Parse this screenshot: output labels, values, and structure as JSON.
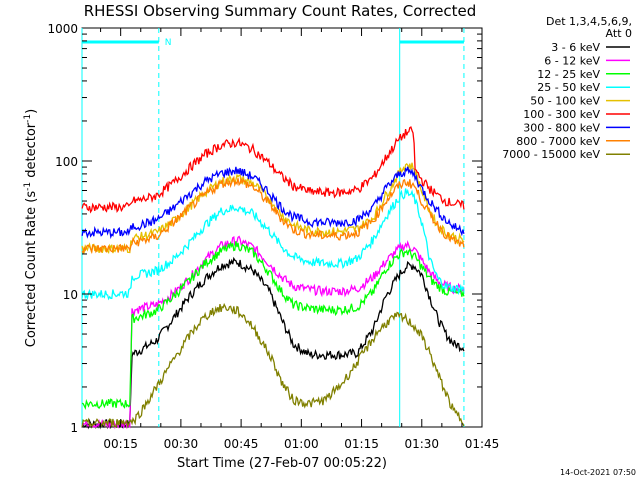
{
  "colors": {
    "background": "#ffffff",
    "axes": "#000000",
    "interval_marker": "#00ffff"
  },
  "chart_data": {
    "type": "line",
    "title": "RHESSI Observing Summary Count Rates, Corrected",
    "xlabel": "Start Time (27-Feb-07 00:05:22)",
    "ylabel_parts": [
      "Corrected Count Rate (s",
      "-1",
      " detector",
      "-1",
      ")"
    ],
    "x_unit": "minutes after 00:00 on 27-Feb-07",
    "xlim": [
      5.37,
      105
    ],
    "ylim": [
      1,
      1000
    ],
    "yscale": "log",
    "grid": false,
    "legend_placement": "right",
    "legend_header": [
      "Det 1,3,4,5,6,9,",
      "Att 0"
    ],
    "x_ticks": [
      {
        "value": 15,
        "label": "00:15"
      },
      {
        "value": 30,
        "label": "00:30"
      },
      {
        "value": 45,
        "label": "00:45"
      },
      {
        "value": 60,
        "label": "01:00"
      },
      {
        "value": 75,
        "label": "01:15"
      },
      {
        "value": 90,
        "label": "01:30"
      },
      {
        "value": 105,
        "label": "01:45"
      }
    ],
    "y_ticks": [
      {
        "value": 1,
        "label": "1"
      },
      {
        "value": 10,
        "label": "10"
      },
      {
        "value": 100,
        "label": "100"
      },
      {
        "value": 1000,
        "label": "1000"
      }
    ],
    "intervals": [
      {
        "start": 5.37,
        "end": 24.5,
        "label": "N"
      },
      {
        "start": 84.5,
        "end": 100.5,
        "label": ""
      }
    ],
    "series": [
      {
        "name": "3 - 6 keV",
        "color": "#000000",
        "x": [
          5.4,
          17.5,
          17.6,
          20,
          24,
          28,
          32,
          36,
          40,
          44,
          48,
          52,
          55,
          58,
          62,
          66,
          70,
          74,
          78,
          81,
          84,
          86,
          88,
          90,
          92,
          94,
          96,
          98,
          100.5
        ],
        "y": [
          1.05,
          1.05,
          3.5,
          3.8,
          4.5,
          6.5,
          9.5,
          13,
          16.5,
          17.5,
          15,
          10.5,
          6.5,
          4.2,
          3.5,
          3.5,
          3.5,
          3.6,
          5.5,
          9.5,
          13.5,
          16,
          16.5,
          14,
          9.5,
          6.5,
          5,
          4.2,
          4
        ]
      },
      {
        "name": "6 - 12 keV",
        "color": "#ff00ff",
        "x": [
          5.4,
          17.5,
          17.6,
          20,
          24,
          28,
          32,
          36,
          40,
          44,
          48,
          52,
          55,
          58,
          62,
          66,
          70,
          74,
          78,
          81,
          84,
          86,
          88,
          90,
          92,
          94,
          96,
          98,
          100.5
        ],
        "y": [
          1.05,
          1.05,
          7.5,
          7.8,
          8.3,
          10,
          13,
          18,
          23,
          25.5,
          22.5,
          17,
          13.5,
          11.5,
          10.8,
          10.5,
          10.5,
          11,
          13.5,
          17.5,
          21.5,
          23.5,
          22,
          18,
          14.5,
          12.5,
          11.5,
          11,
          11
        ]
      },
      {
        "name": "12 - 25 keV",
        "color": "#00ff00",
        "x": [
          5.4,
          17.5,
          17.6,
          20,
          24,
          28,
          32,
          36,
          40,
          44,
          48,
          52,
          55,
          58,
          62,
          66,
          70,
          74,
          78,
          81,
          84,
          86,
          88,
          90,
          92,
          94,
          96,
          98,
          100.5
        ],
        "y": [
          1.5,
          1.5,
          6.5,
          6.8,
          7.5,
          9.5,
          12.5,
          17,
          21,
          23.5,
          20.5,
          14.5,
          10.5,
          8.3,
          7.8,
          7.6,
          7.6,
          8,
          10.5,
          15.5,
          19.5,
          21,
          19.5,
          16,
          13,
          11.5,
          10.5,
          10.2,
          10
        ]
      },
      {
        "name": "25 - 50 keV",
        "color": "#00ffff",
        "x": [
          5.4,
          12,
          17.5,
          17.6,
          20,
          24,
          28,
          32,
          36,
          40,
          44,
          48,
          52,
          55,
          58,
          62,
          66,
          70,
          74,
          78,
          81,
          84,
          86,
          88,
          90,
          92,
          94,
          96,
          98,
          100.5
        ],
        "y": [
          10,
          10,
          10.2,
          13.5,
          14,
          15,
          18,
          24,
          33,
          42,
          45,
          40,
          30,
          23,
          19,
          17.5,
          17,
          17,
          18.5,
          26,
          38,
          52,
          58,
          54,
          35,
          18,
          13,
          11.5,
          11,
          11
        ]
      },
      {
        "name": "50 - 100 keV",
        "color": "#e5c000",
        "x": [
          5.4,
          17.5,
          17.6,
          20,
          24,
          28,
          32,
          36,
          40,
          44,
          48,
          52,
          55,
          58,
          62,
          66,
          70,
          74,
          78,
          81,
          84,
          86,
          88,
          90,
          92,
          94,
          96,
          98,
          100.5
        ],
        "y": [
          22,
          22,
          26,
          27,
          29,
          35,
          45,
          58,
          70,
          75,
          68,
          52,
          40,
          33,
          30,
          29.5,
          29.5,
          31,
          38,
          55,
          78,
          95,
          90,
          60,
          42,
          33,
          29,
          27,
          25
        ]
      },
      {
        "name": "100 - 300 keV",
        "color": "#ff0000",
        "x": [
          5.4,
          17.5,
          17.6,
          20,
          24,
          28,
          32,
          36,
          40,
          44,
          48,
          52,
          55,
          58,
          62,
          66,
          70,
          74,
          78,
          81,
          84,
          86,
          88,
          88.2,
          90,
          92,
          94,
          96,
          98,
          100.5
        ],
        "y": [
          45,
          45,
          50,
          51,
          55,
          68,
          88,
          112,
          132,
          138,
          122,
          96,
          77,
          65,
          59,
          58,
          58,
          61,
          76,
          105,
          142,
          162,
          170,
          88,
          72,
          62,
          55,
          50,
          48,
          46
        ]
      },
      {
        "name": "300 - 800 keV",
        "color": "#0000ff",
        "x": [
          5.4,
          17.5,
          17.6,
          20,
          24,
          28,
          32,
          36,
          40,
          44,
          48,
          52,
          55,
          58,
          62,
          66,
          70,
          74,
          78,
          81,
          84,
          86,
          88,
          90,
          92,
          94,
          96,
          98,
          100.5
        ],
        "y": [
          29,
          29,
          32,
          33,
          36,
          44,
          56,
          70,
          81,
          85,
          76,
          58,
          45,
          38,
          35,
          34.5,
          34.5,
          36,
          45,
          62,
          78,
          85,
          80,
          62,
          50,
          42,
          36,
          32,
          30
        ]
      },
      {
        "name": "800 - 7000 keV",
        "color": "#ff8000",
        "x": [
          5.4,
          17.5,
          17.6,
          20,
          24,
          28,
          32,
          36,
          40,
          44,
          48,
          52,
          55,
          58,
          62,
          66,
          70,
          74,
          78,
          81,
          84,
          86,
          88,
          90,
          92,
          94,
          96,
          98,
          100.5
        ],
        "y": [
          22,
          22,
          24,
          25,
          27,
          34,
          44,
          56,
          68,
          72,
          64,
          48,
          37,
          30.5,
          28,
          27.5,
          27.5,
          29,
          36,
          50,
          64,
          70,
          66,
          50,
          40,
          33,
          28,
          25,
          23
        ]
      },
      {
        "name": "7000 - 15000 keV",
        "color": "#808000",
        "x": [
          5.4,
          18,
          20,
          23,
          26,
          29,
          32,
          35,
          38,
          41,
          44,
          47,
          50,
          53,
          55,
          58,
          62,
          66,
          70,
          73,
          76,
          79,
          82,
          84,
          86,
          88,
          90,
          92,
          94,
          96,
          98,
          100.5
        ],
        "y": [
          1.05,
          1.1,
          1.3,
          1.8,
          2.5,
          3.5,
          4.8,
          6.3,
          7.5,
          8,
          7.5,
          6.2,
          4.5,
          3.1,
          2.2,
          1.6,
          1.5,
          1.6,
          2.1,
          2.8,
          3.8,
          5.2,
          6.4,
          6.8,
          6.5,
          5.8,
          4.8,
          3.6,
          2.5,
          1.8,
          1.3,
          1.1
        ]
      }
    ]
  },
  "footer": {
    "date_stamp": "14-Oct-2021 07:50"
  }
}
